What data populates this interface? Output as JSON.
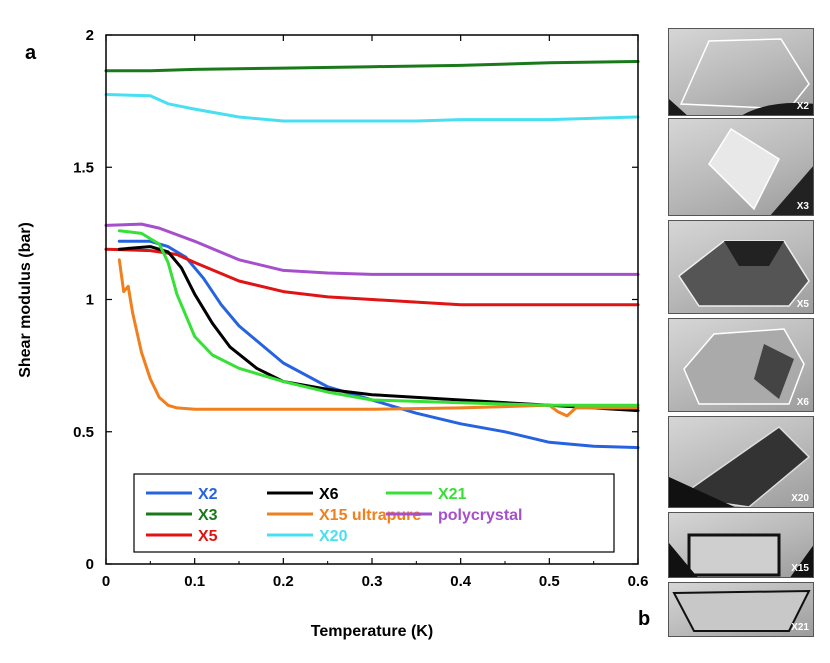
{
  "panel_a_label": "a",
  "panel_b_label": "b",
  "chart_data": {
    "type": "line",
    "xlabel": "Temperature (K)",
    "ylabel": "Shear modulus  (bar)",
    "xlim": [
      0,
      0.6
    ],
    "ylim": [
      0,
      2
    ],
    "x_ticks": [
      "0",
      "0.1",
      "0.2",
      "0.3",
      "0.4",
      "0.5",
      "0.6"
    ],
    "y_ticks": [
      "0",
      "0.5",
      "1",
      "1.5",
      "2"
    ],
    "x_tick_values": [
      0,
      0.1,
      0.2,
      0.3,
      0.4,
      0.5,
      0.6
    ],
    "y_tick_values": [
      0,
      0.5,
      1,
      1.5,
      2
    ],
    "legend_position": "bottom-left",
    "series": [
      {
        "name": "X2",
        "color": "#2563e0",
        "x": [
          0.015,
          0.05,
          0.07,
          0.09,
          0.11,
          0.13,
          0.15,
          0.2,
          0.25,
          0.3,
          0.35,
          0.4,
          0.45,
          0.5,
          0.55,
          0.6
        ],
        "y": [
          1.22,
          1.22,
          1.2,
          1.16,
          1.08,
          0.98,
          0.9,
          0.76,
          0.67,
          0.62,
          0.57,
          0.53,
          0.5,
          0.46,
          0.445,
          0.44
        ]
      },
      {
        "name": "X3",
        "color": "#1a7a1a",
        "x": [
          0,
          0.05,
          0.1,
          0.2,
          0.3,
          0.4,
          0.5,
          0.6
        ],
        "y": [
          1.865,
          1.865,
          1.87,
          1.875,
          1.88,
          1.885,
          1.895,
          1.9
        ]
      },
      {
        "name": "X5",
        "color": "#e01414",
        "x": [
          0,
          0.05,
          0.08,
          0.1,
          0.15,
          0.2,
          0.25,
          0.3,
          0.35,
          0.4,
          0.5,
          0.6
        ],
        "y": [
          1.19,
          1.185,
          1.17,
          1.14,
          1.07,
          1.03,
          1.01,
          1.0,
          0.99,
          0.98,
          0.98,
          0.98
        ]
      },
      {
        "name": "X6",
        "color": "#000000",
        "x": [
          0.015,
          0.05,
          0.07,
          0.085,
          0.1,
          0.12,
          0.14,
          0.17,
          0.2,
          0.25,
          0.3,
          0.4,
          0.5,
          0.6
        ],
        "y": [
          1.19,
          1.2,
          1.18,
          1.12,
          1.02,
          0.91,
          0.82,
          0.74,
          0.69,
          0.66,
          0.64,
          0.62,
          0.6,
          0.58
        ]
      },
      {
        "name": "X15 ultrapure",
        "color": "#f07f1e",
        "x": [
          0.015,
          0.02,
          0.025,
          0.03,
          0.04,
          0.05,
          0.06,
          0.07,
          0.08,
          0.1,
          0.2,
          0.3,
          0.4,
          0.5,
          0.51,
          0.52,
          0.53,
          0.6
        ],
        "y": [
          1.15,
          1.03,
          1.05,
          0.95,
          0.8,
          0.7,
          0.63,
          0.6,
          0.59,
          0.585,
          0.585,
          0.585,
          0.59,
          0.6,
          0.575,
          0.56,
          0.59,
          0.59
        ]
      },
      {
        "name": "X20",
        "color": "#48dff0",
        "x": [
          0,
          0.05,
          0.07,
          0.1,
          0.15,
          0.2,
          0.25,
          0.3,
          0.35,
          0.4,
          0.5,
          0.6
        ],
        "y": [
          1.775,
          1.77,
          1.74,
          1.72,
          1.69,
          1.675,
          1.675,
          1.675,
          1.675,
          1.68,
          1.68,
          1.69
        ]
      },
      {
        "name": "X21",
        "color": "#36e036",
        "x": [
          0.015,
          0.04,
          0.06,
          0.07,
          0.08,
          0.1,
          0.12,
          0.15,
          0.2,
          0.25,
          0.3,
          0.4,
          0.5,
          0.6
        ],
        "y": [
          1.26,
          1.25,
          1.21,
          1.14,
          1.02,
          0.86,
          0.79,
          0.74,
          0.69,
          0.65,
          0.62,
          0.61,
          0.6,
          0.6
        ]
      },
      {
        "name": "polycrystal",
        "color": "#a64fcc",
        "x": [
          0,
          0.04,
          0.06,
          0.1,
          0.15,
          0.2,
          0.25,
          0.3,
          0.4,
          0.5,
          0.6
        ],
        "y": [
          1.28,
          1.285,
          1.27,
          1.22,
          1.15,
          1.11,
          1.1,
          1.095,
          1.095,
          1.095,
          1.095
        ]
      }
    ]
  },
  "photo_panels": [
    "X2",
    "X3",
    "X5",
    "X6",
    "X20",
    "X15",
    "X21"
  ]
}
